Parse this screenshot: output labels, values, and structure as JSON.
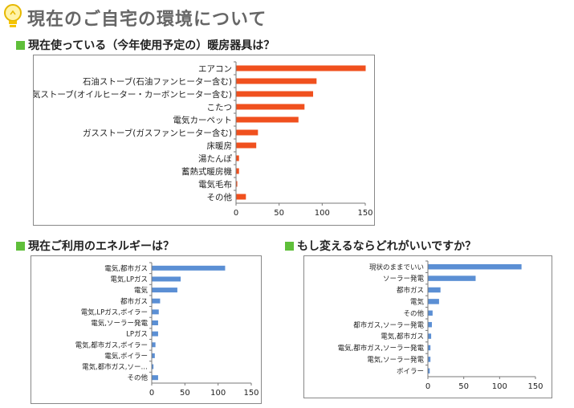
{
  "page": {
    "title": "現在のご自宅の環境について",
    "icon": "lightbulb-icon",
    "accent_color": "#5fbf3a",
    "title_color": "#666666"
  },
  "sections": {
    "heaters": "現在使っている（今年使用予定の）暖房器具は？",
    "energy": "現在ご利用のエネルギーは？",
    "change": "もし変えるならどれがいいですか？"
  },
  "chart_data": [
    {
      "id": "heaters",
      "type": "bar",
      "orientation": "horizontal",
      "color": "#f0501e",
      "categories": [
        "エアコン",
        "石油ストーブ(石油ファンヒーター含む)",
        "電気ストーブ(オイルヒーター・カーボンヒーター含む)",
        "こたつ",
        "電気カーペット",
        "ガスストーブ(ガスファンヒーター含む)",
        "床暖房",
        "湯たんぽ",
        "蓄熱式暖房機",
        "電気毛布",
        "その他"
      ],
      "values": [
        150,
        93,
        89,
        79,
        72,
        25,
        23,
        3,
        3,
        1,
        11
      ],
      "xlim": [
        0,
        150
      ],
      "xticks": [
        "0",
        "50",
        "100",
        "150"
      ]
    },
    {
      "id": "energy",
      "type": "bar",
      "orientation": "horizontal",
      "color": "#5b8fd4",
      "categories": [
        "電気,都市ガス",
        "電気,LPガス",
        "電気",
        "都市ガス",
        "電気,LPガス,ボイラー",
        "電気,ソーラー発電",
        "LPガス",
        "電気,都市ガス,ボイラー",
        "電気,ボイラー",
        "電気,都市ガス,ソー…",
        "その他"
      ],
      "values": [
        110,
        43,
        38,
        12,
        10,
        9,
        9,
        5,
        4,
        2,
        9
      ],
      "xlim": [
        0,
        150
      ],
      "xticks": [
        "0",
        "50",
        "100",
        "150"
      ]
    },
    {
      "id": "change",
      "type": "bar",
      "orientation": "horizontal",
      "color": "#5b8fd4",
      "categories": [
        "現状のままでいい",
        "ソーラー発電",
        "都市ガス",
        "電気",
        "その他",
        "都市ガス,ソーラー発電",
        "電気,都市ガス",
        "電気,都市ガス,ソーラー発電",
        "電気,ソーラー発電",
        "ボイラー"
      ],
      "values": [
        130,
        66,
        17,
        15,
        6,
        5,
        4,
        3,
        3,
        2
      ],
      "xlim": [
        0,
        150
      ],
      "xticks": [
        "0",
        "50",
        "100",
        "150"
      ]
    }
  ]
}
